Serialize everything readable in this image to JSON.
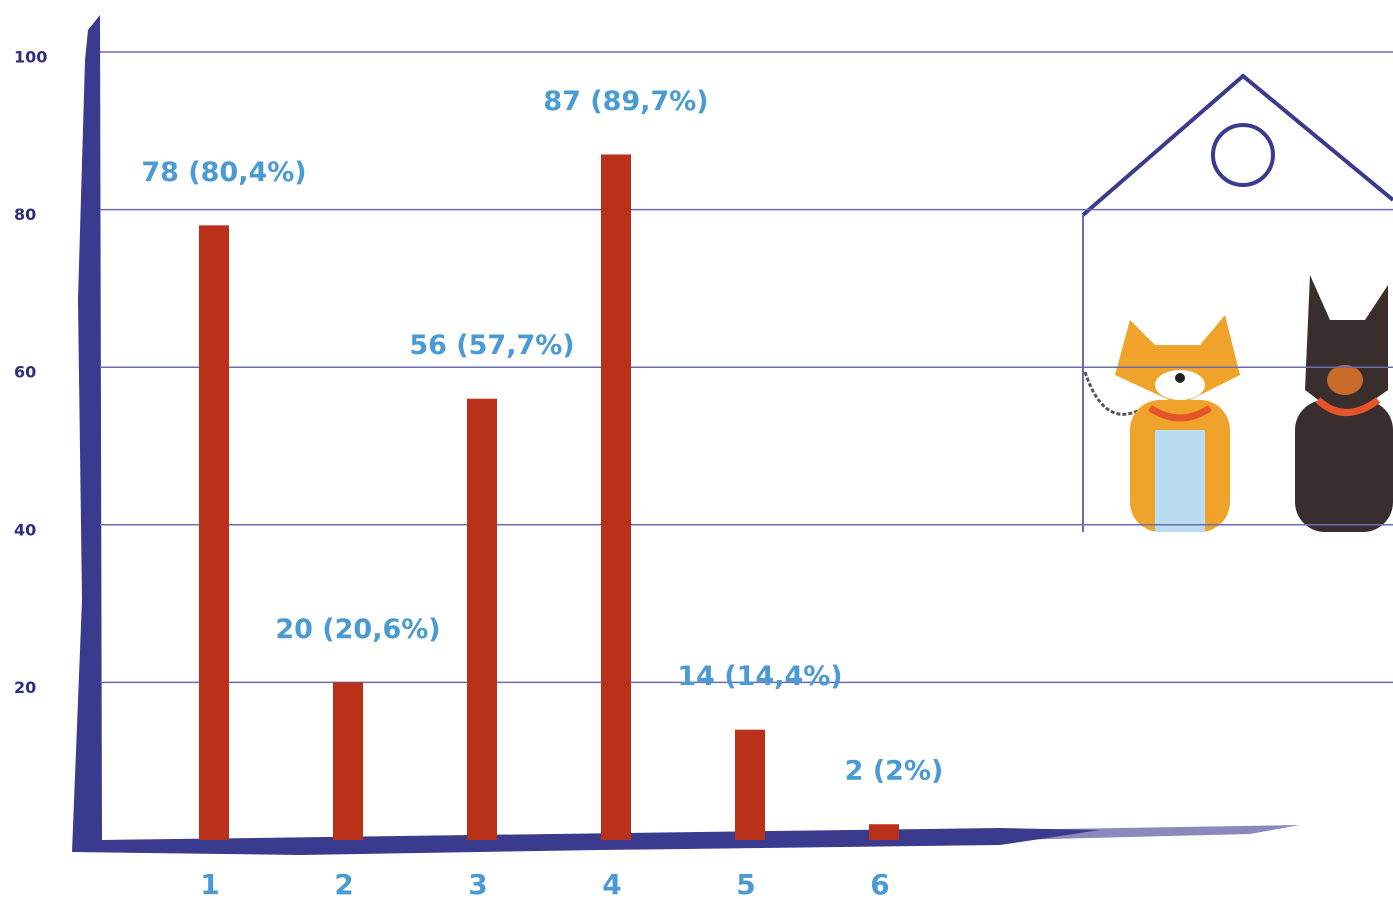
{
  "chart_data": {
    "type": "bar",
    "categories": [
      "1",
      "2",
      "3",
      "4",
      "5",
      "6"
    ],
    "values": [
      78,
      20,
      56,
      87,
      14,
      2
    ],
    "value_labels": [
      "78 (80,4%)",
      "20 (20,6%)",
      "56 (57,7%)",
      "87 (89,7%)",
      "14 (14,4%)",
      "2 (2%)"
    ],
    "color": "#b83118",
    "ylim": [
      0,
      100
    ],
    "yticks": [
      20,
      40,
      60,
      80,
      100
    ],
    "grid": true
  }
}
